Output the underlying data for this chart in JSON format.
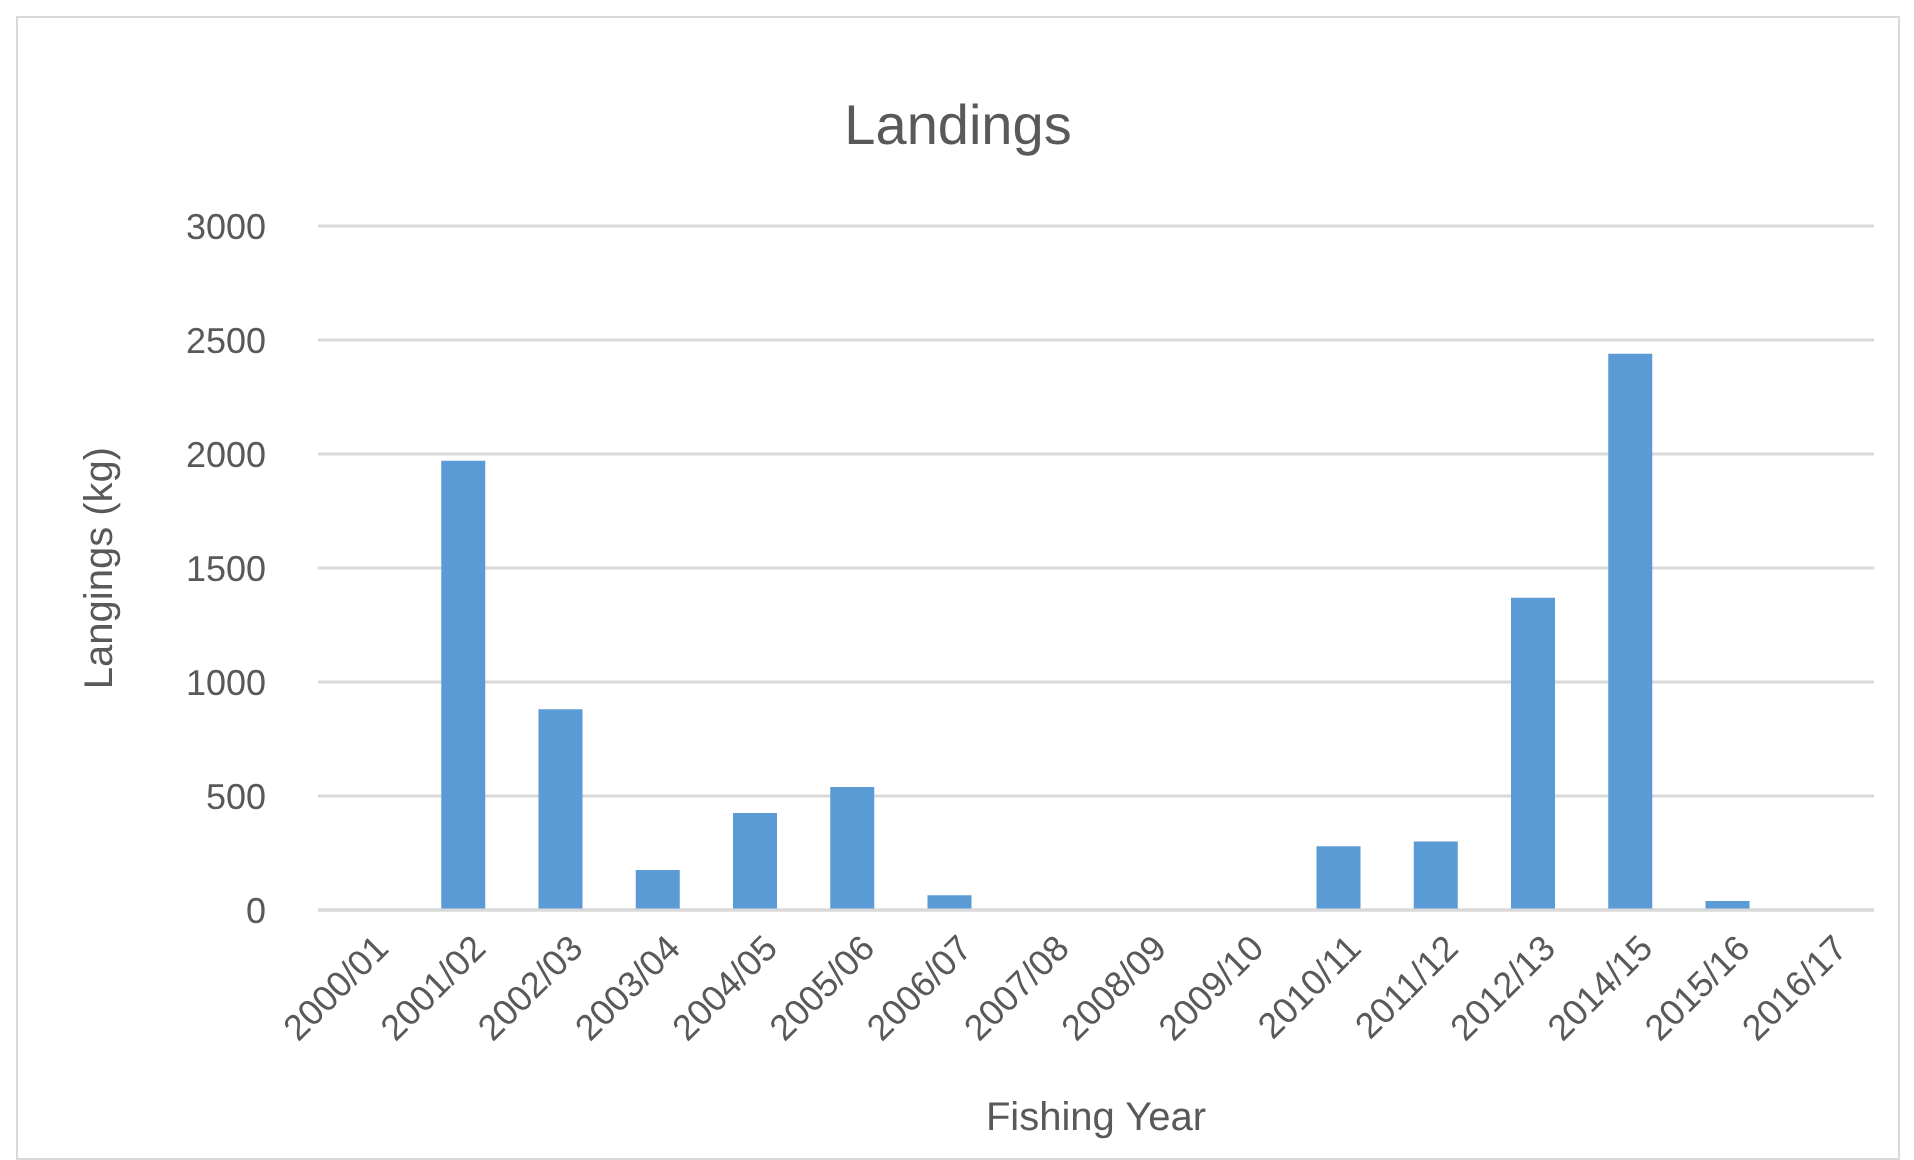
{
  "chart_data": {
    "type": "bar",
    "title": "Landings",
    "xlabel": "Fishing Year",
    "ylabel": "Langings (kg)",
    "categories": [
      "2000/01",
      "2001/02",
      "2002/03",
      "2003/04",
      "2004/05",
      "2005/06",
      "2006/07",
      "2007/08",
      "2008/09",
      "2009/10",
      "2010/11",
      "2011/12",
      "2012/13",
      "2014/15",
      "2015/16",
      "2016/17"
    ],
    "values": [
      0,
      1970,
      880,
      175,
      425,
      540,
      65,
      0,
      0,
      0,
      280,
      300,
      1370,
      2440,
      40,
      0
    ],
    "color": "#5b9bd5",
    "ylim": [
      0,
      3000
    ],
    "yticks": [
      0,
      500,
      1000,
      1500,
      2000,
      2500,
      3000
    ],
    "grid": "y",
    "legend": false
  }
}
